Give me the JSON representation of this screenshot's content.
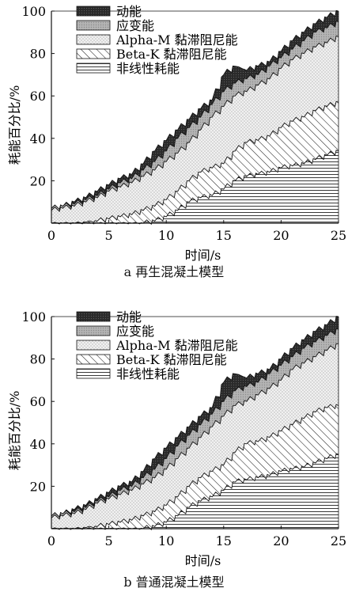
{
  "chart_data": [
    {
      "type": "area",
      "caption": "a 再生混凝土模型",
      "xlabel": "时间/s",
      "ylabel": "耗能百分比/%",
      "xlim": [
        0,
        25
      ],
      "ylim": [
        0,
        100
      ],
      "xticks": [
        "0",
        "5",
        "10",
        "15",
        "20",
        "25"
      ],
      "yticks": [
        "20",
        "40",
        "60",
        "80",
        "100"
      ],
      "stacked_cumulative": true,
      "legend_position": "top-left",
      "x": [
        0,
        1,
        2,
        3,
        4,
        5,
        6,
        7,
        8,
        9,
        10,
        11,
        12,
        13,
        14,
        15,
        16,
        17,
        18,
        19,
        20,
        21,
        22,
        23,
        24,
        25
      ],
      "series": [
        {
          "name": "非线性耗能",
          "pattern": "hlines",
          "values": [
            0,
            0,
            0,
            0,
            0,
            0,
            0,
            0,
            0,
            1,
            3,
            6,
            10,
            12,
            13,
            16,
            20,
            22,
            23,
            24,
            26,
            27,
            28,
            30,
            32,
            34
          ]
        },
        {
          "name": "Beta-K 黏滞阻尼能",
          "pattern": "diagonal",
          "values": [
            0,
            0,
            0,
            0.5,
            1,
            2,
            3,
            4,
            6,
            8,
            11,
            15,
            20,
            24,
            26,
            28,
            34,
            38,
            39,
            41,
            45,
            48,
            50,
            53,
            55,
            57
          ]
        },
        {
          "name": "Alpha-M 黏滞阻尼能",
          "pattern": "dots",
          "values": [
            6,
            7,
            8,
            10,
            12,
            15,
            17,
            19,
            22,
            25,
            29,
            33,
            38,
            44,
            50,
            55,
            60,
            62,
            65,
            68,
            73,
            77,
            80,
            83,
            85,
            88
          ]
        },
        {
          "name": "应变能",
          "pattern": "gray",
          "values": [
            7,
            8,
            9,
            11,
            13,
            16,
            19,
            21,
            25,
            29,
            34,
            40,
            45,
            50,
            56,
            62,
            66,
            68,
            70,
            74,
            78,
            82,
            86,
            90,
            92,
            95
          ]
        },
        {
          "name": "动能",
          "pattern": "black",
          "values": [
            7,
            8,
            10,
            12,
            15,
            18,
            21,
            23,
            28,
            34,
            39,
            44,
            49,
            54,
            58,
            70,
            74,
            72,
            74,
            76,
            81,
            86,
            90,
            94,
            97,
            100
          ]
        }
      ]
    },
    {
      "type": "area",
      "caption": "b 普通混凝土模型",
      "xlabel": "时间/s",
      "ylabel": "耗能百分比/%",
      "xlim": [
        0,
        25
      ],
      "ylim": [
        0,
        100
      ],
      "xticks": [
        "0",
        "5",
        "10",
        "15",
        "20",
        "25"
      ],
      "yticks": [
        "20",
        "40",
        "60",
        "80",
        "100"
      ],
      "stacked_cumulative": true,
      "legend_position": "top-left",
      "x": [
        0,
        1,
        2,
        3,
        4,
        5,
        6,
        7,
        8,
        9,
        10,
        11,
        12,
        13,
        14,
        15,
        16,
        17,
        18,
        19,
        20,
        21,
        22,
        23,
        24,
        25
      ],
      "series": [
        {
          "name": "非线性耗能",
          "pattern": "hlines",
          "values": [
            0,
            0,
            0,
            0,
            0,
            0,
            0,
            0,
            0,
            1,
            3,
            6,
            10,
            13,
            15,
            18,
            22,
            23,
            24,
            25,
            27,
            28,
            29,
            31,
            33,
            35
          ]
        },
        {
          "name": "Beta-K 黏滞阻尼能",
          "pattern": "diagonal",
          "values": [
            0,
            0,
            0,
            0.5,
            1,
            2,
            3,
            4,
            6,
            8,
            11,
            15,
            20,
            24,
            27,
            30,
            36,
            40,
            41,
            43,
            46,
            49,
            52,
            55,
            57,
            58
          ]
        },
        {
          "name": "Alpha-M 黏滞阻尼能",
          "pattern": "dots",
          "values": [
            5,
            6,
            7,
            9,
            12,
            14,
            16,
            18,
            21,
            24,
            28,
            33,
            38,
            43,
            48,
            53,
            58,
            60,
            63,
            66,
            70,
            75,
            78,
            81,
            84,
            87
          ]
        },
        {
          "name": "应变能",
          "pattern": "gray",
          "values": [
            6,
            7,
            8,
            10,
            13,
            15,
            18,
            20,
            24,
            28,
            33,
            39,
            44,
            49,
            54,
            60,
            65,
            67,
            69,
            73,
            77,
            81,
            85,
            88,
            91,
            94
          ]
        },
        {
          "name": "动能",
          "pattern": "black",
          "values": [
            6,
            7,
            9,
            11,
            14,
            17,
            20,
            22,
            27,
            33,
            38,
            43,
            48,
            53,
            57,
            69,
            73,
            71,
            73,
            75,
            80,
            85,
            89,
            93,
            96,
            100
          ]
        }
      ]
    }
  ]
}
